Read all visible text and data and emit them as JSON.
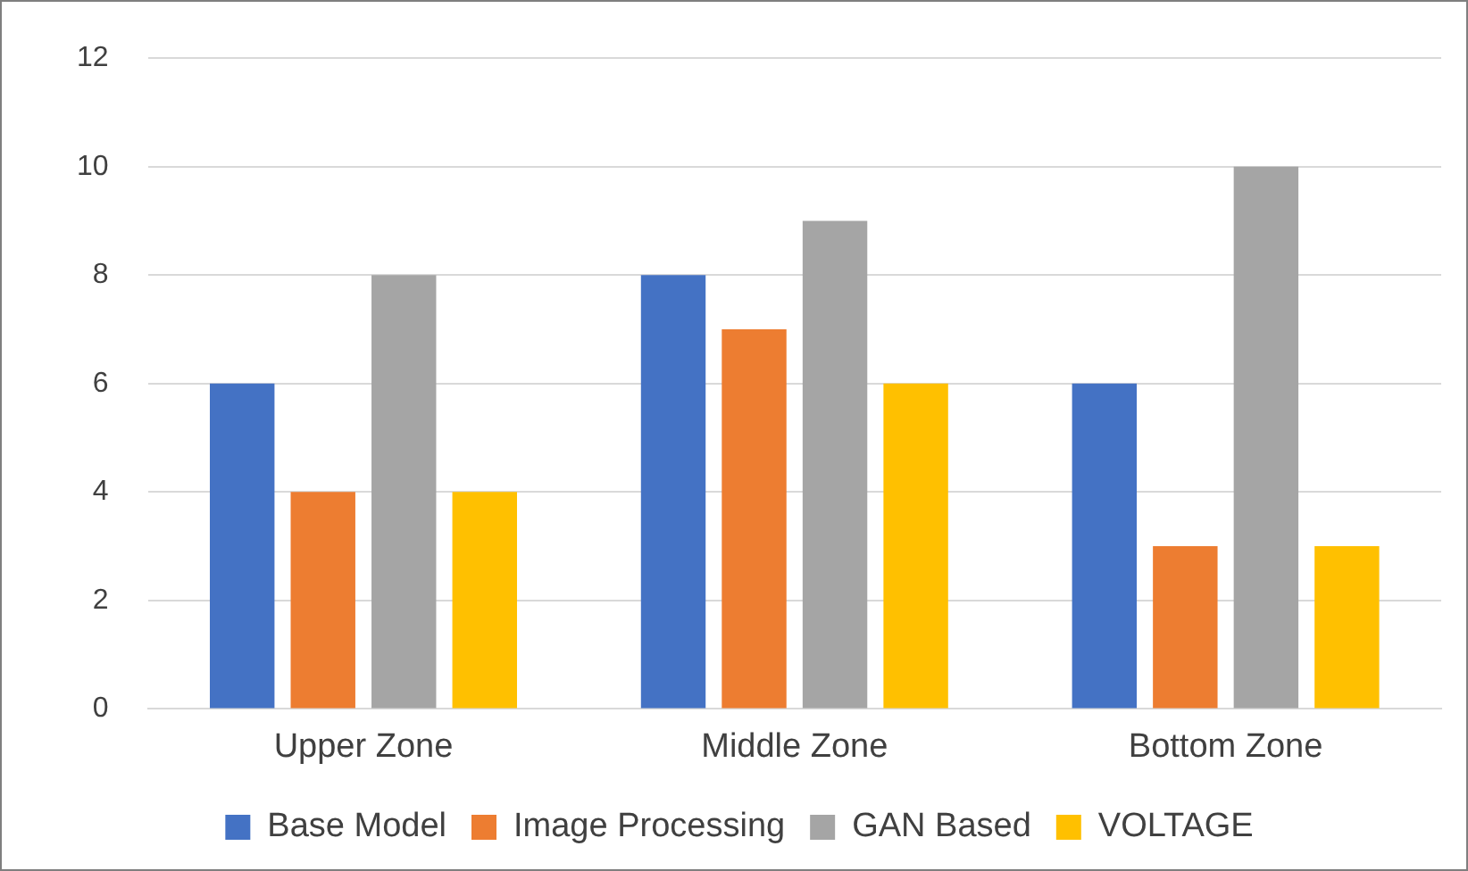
{
  "chart_data": {
    "type": "bar",
    "categories": [
      "Upper Zone",
      "Middle Zone",
      "Bottom Zone"
    ],
    "series": [
      {
        "name": "Base Model",
        "color": "#4472c4",
        "values": [
          6,
          8,
          6
        ]
      },
      {
        "name": "Image Processing",
        "color": "#ed7d31",
        "values": [
          4,
          7,
          3
        ]
      },
      {
        "name": "GAN Based",
        "color": "#a5a5a5",
        "values": [
          8,
          9,
          10
        ]
      },
      {
        "name": "VOLTAGE",
        "color": "#ffc000",
        "values": [
          4,
          6,
          3
        ]
      }
    ],
    "ylim": [
      0,
      12
    ],
    "yticks": [
      0,
      2,
      4,
      6,
      8,
      10,
      12
    ],
    "grid": "y",
    "legend": "bottom"
  }
}
